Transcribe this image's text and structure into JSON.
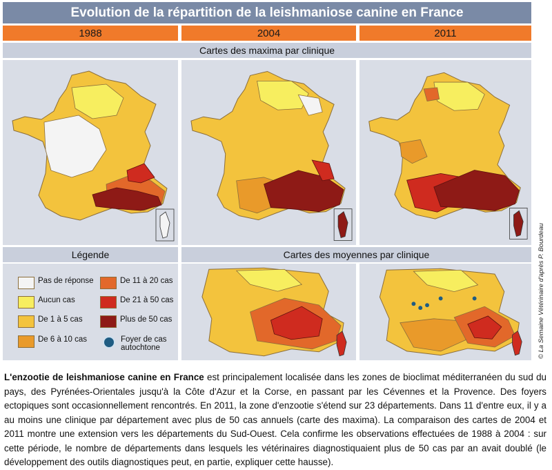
{
  "title": "Evolution de la répartition de la leishmaniose canine en France",
  "years": [
    "1988",
    "2004",
    "2011"
  ],
  "section_maxima": "Cartes des maxima par clinique",
  "section_moyennes": "Cartes des moyennes par clinique",
  "legend": {
    "title": "Légende",
    "items": [
      {
        "label": "Pas de réponse",
        "color": "#f4f4f4"
      },
      {
        "label": "Aucun cas",
        "color": "#f7ee5f"
      },
      {
        "label": "De 1 à 5 cas",
        "color": "#f3c33d"
      },
      {
        "label": "De 6 à 10 cas",
        "color": "#e99a2a"
      },
      {
        "label": "De 11 à 20 cas",
        "color": "#e2682a"
      },
      {
        "label": "De 21 à 50 cas",
        "color": "#cf2b1f"
      },
      {
        "label": "Plus de 50 cas",
        "color": "#8e1a16"
      }
    ],
    "foyer": {
      "label_line1": "Foyer de cas",
      "label_line2": "autochtone",
      "color": "#1f5c82"
    }
  },
  "credit": "© La Semaine Vétérinaire d'après P. Bourdeau",
  "caption": {
    "lead": "L'enzootie de leishmaniose canine en France",
    "body": " est principalement localisée dans les zones de bioclimat méditerranéen du sud du pays, des Pyrénées-Orientales jusqu'à la Côte d'Azur et la Corse, en passant par les Cévennes et la Provence. Des foyers ectopiques sont occasionnellement rencontrés. En 2011, la zone d'enzootie s'étend sur 23 départements. Dans 11 d'entre eux, il y a au moins une clinique par département avec plus de 50 cas annuels (carte des maxima). La comparaison des cartes de 2004 et 2011 montre une extension vers les départements du Sud-Ouest. Cela confirme les observations effectuées de 1988 à 2004 : sur cette période, le nombre de départements dans lesquels les vétérinaires diagnostiquaient plus de 50 cas par an avait doublé (le développement des outils diagnostiques peut, en partie, expliquer cette hausse)."
  }
}
